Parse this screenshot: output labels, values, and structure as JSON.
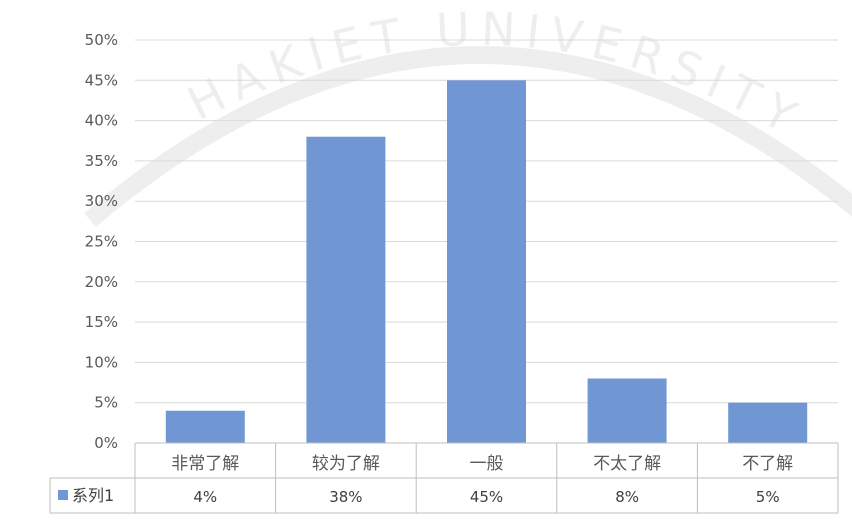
{
  "watermark": {
    "text": "HAKIET UNIVERSITY"
  },
  "chart_data": {
    "type": "bar",
    "categories": [
      "非常了解",
      "较为了解",
      "一般",
      "不太了解",
      "不了解"
    ],
    "series": [
      {
        "name": "系列1",
        "values": [
          4,
          38,
          45,
          8,
          5
        ],
        "value_labels": [
          "4%",
          "38%",
          "45%",
          "8%",
          "5%"
        ],
        "color": "#7196D4"
      }
    ],
    "ylim": [
      0,
      50
    ],
    "yticks": [
      0,
      5,
      10,
      15,
      20,
      25,
      30,
      35,
      40,
      45,
      50
    ],
    "ytick_labels": [
      "0%",
      "5%",
      "10%",
      "15%",
      "20%",
      "25%",
      "30%",
      "35%",
      "40%",
      "45%",
      "50%"
    ],
    "grid": true,
    "legend": "bottom-left data table",
    "title": "",
    "xlabel": "",
    "ylabel": ""
  }
}
